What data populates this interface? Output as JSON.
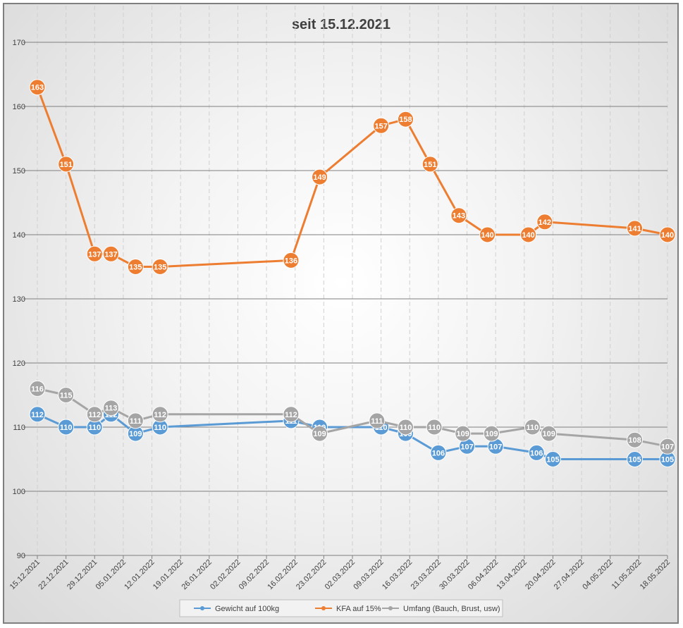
{
  "chart_data": {
    "type": "line",
    "title": "seit 15.12.2021",
    "xlabel": "",
    "ylabel": "",
    "ylim": [
      90,
      170
    ],
    "yticks": [
      90,
      100,
      110,
      120,
      130,
      140,
      150,
      160,
      170
    ],
    "grid": "horizontal",
    "legend_position": "bottom",
    "x_tick_labels": [
      "15.12.2021",
      "22.12.2021",
      "29.12.2021",
      "05.01.2022",
      "12.01.2022",
      "19.01.2022",
      "26.01.2022",
      "02.02.2022",
      "09.02.2022",
      "16.02.2022",
      "23.02.2022",
      "02.03.2022",
      "09.03.2022",
      "16.03.2022",
      "23.03.2022",
      "30.03.2022",
      "06.04.2022",
      "13.04.2022",
      "20.04.2022",
      "27.04.2022",
      "04.05.2022",
      "11.05.2022",
      "18.05.2022"
    ],
    "x_start": "15.12.2021",
    "x_end": "18.05.2022",
    "series": [
      {
        "name": "Gewicht auf 100kg",
        "color": "#5b9bd5",
        "points": [
          {
            "x": "15.12.2021",
            "y": 112,
            "label": "112"
          },
          {
            "x": "22.12.2021",
            "y": 110,
            "label": "110"
          },
          {
            "x": "29.12.2021",
            "y": 110,
            "label": "110"
          },
          {
            "x": "02.01.2022",
            "y": 112,
            "label": "112"
          },
          {
            "x": "08.01.2022",
            "y": 109,
            "label": "109"
          },
          {
            "x": "14.01.2022",
            "y": 110,
            "label": "110"
          },
          {
            "x": "15.02.2022",
            "y": 111,
            "label": "111"
          },
          {
            "x": "22.02.2022",
            "y": 110,
            "label": "110"
          },
          {
            "x": "09.03.2022",
            "y": 110,
            "label": "110"
          },
          {
            "x": "15.03.2022",
            "y": 109,
            "label": "109"
          },
          {
            "x": "23.03.2022",
            "y": 106,
            "label": "106"
          },
          {
            "x": "30.03.2022",
            "y": 107,
            "label": "107"
          },
          {
            "x": "06.04.2022",
            "y": 107,
            "label": "107"
          },
          {
            "x": "16.04.2022",
            "y": 106,
            "label": "106"
          },
          {
            "x": "20.04.2022",
            "y": 105,
            "label": "105"
          },
          {
            "x": "10.05.2022",
            "y": 105,
            "label": "105"
          },
          {
            "x": "18.05.2022",
            "y": 105,
            "label": "105"
          }
        ]
      },
      {
        "name": "KFA auf 15%",
        "color": "#ed7d31",
        "points": [
          {
            "x": "15.12.2021",
            "y": 163,
            "label": "163"
          },
          {
            "x": "22.12.2021",
            "y": 151,
            "label": "151"
          },
          {
            "x": "29.12.2021",
            "y": 137,
            "label": "137"
          },
          {
            "x": "02.01.2022",
            "y": 137,
            "label": "137"
          },
          {
            "x": "08.01.2022",
            "y": 135,
            "label": "135"
          },
          {
            "x": "14.01.2022",
            "y": 135,
            "label": "135"
          },
          {
            "x": "15.02.2022",
            "y": 136,
            "label": "136"
          },
          {
            "x": "22.02.2022",
            "y": 149,
            "label": "149"
          },
          {
            "x": "09.03.2022",
            "y": 157,
            "label": "157"
          },
          {
            "x": "15.03.2022",
            "y": 158,
            "label": "158"
          },
          {
            "x": "21.03.2022",
            "y": 151,
            "label": "151"
          },
          {
            "x": "28.03.2022",
            "y": 143,
            "label": "143"
          },
          {
            "x": "04.04.2022",
            "y": 140,
            "label": "140"
          },
          {
            "x": "14.04.2022",
            "y": 140,
            "label": "140"
          },
          {
            "x": "18.04.2022",
            "y": 142,
            "label": "142"
          },
          {
            "x": "10.05.2022",
            "y": 141,
            "label": "141"
          },
          {
            "x": "18.05.2022",
            "y": 140,
            "label": "140"
          }
        ]
      },
      {
        "name": "Umfang (Bauch, Brust, usw)",
        "color": "#a5a5a5",
        "points": [
          {
            "x": "15.12.2021",
            "y": 116,
            "label": "116"
          },
          {
            "x": "22.12.2021",
            "y": 115,
            "label": "115"
          },
          {
            "x": "29.12.2021",
            "y": 112,
            "label": "112"
          },
          {
            "x": "02.01.2022",
            "y": 113,
            "label": "113"
          },
          {
            "x": "08.01.2022",
            "y": 111,
            "label": "111"
          },
          {
            "x": "14.01.2022",
            "y": 112,
            "label": "112"
          },
          {
            "x": "15.02.2022",
            "y": 112,
            "label": "112"
          },
          {
            "x": "22.02.2022",
            "y": 109,
            "label": "109"
          },
          {
            "x": "08.03.2022",
            "y": 111,
            "label": "111"
          },
          {
            "x": "15.03.2022",
            "y": 110,
            "label": "110"
          },
          {
            "x": "22.03.2022",
            "y": 110,
            "label": "110"
          },
          {
            "x": "29.03.2022",
            "y": 109,
            "label": "109"
          },
          {
            "x": "05.04.2022",
            "y": 109,
            "label": "109"
          },
          {
            "x": "15.04.2022",
            "y": 110,
            "label": "110"
          },
          {
            "x": "19.04.2022",
            "y": 109,
            "label": "109"
          },
          {
            "x": "10.05.2022",
            "y": 108,
            "label": "108"
          },
          {
            "x": "18.05.2022",
            "y": 107,
            "label": "107"
          }
        ]
      }
    ]
  }
}
